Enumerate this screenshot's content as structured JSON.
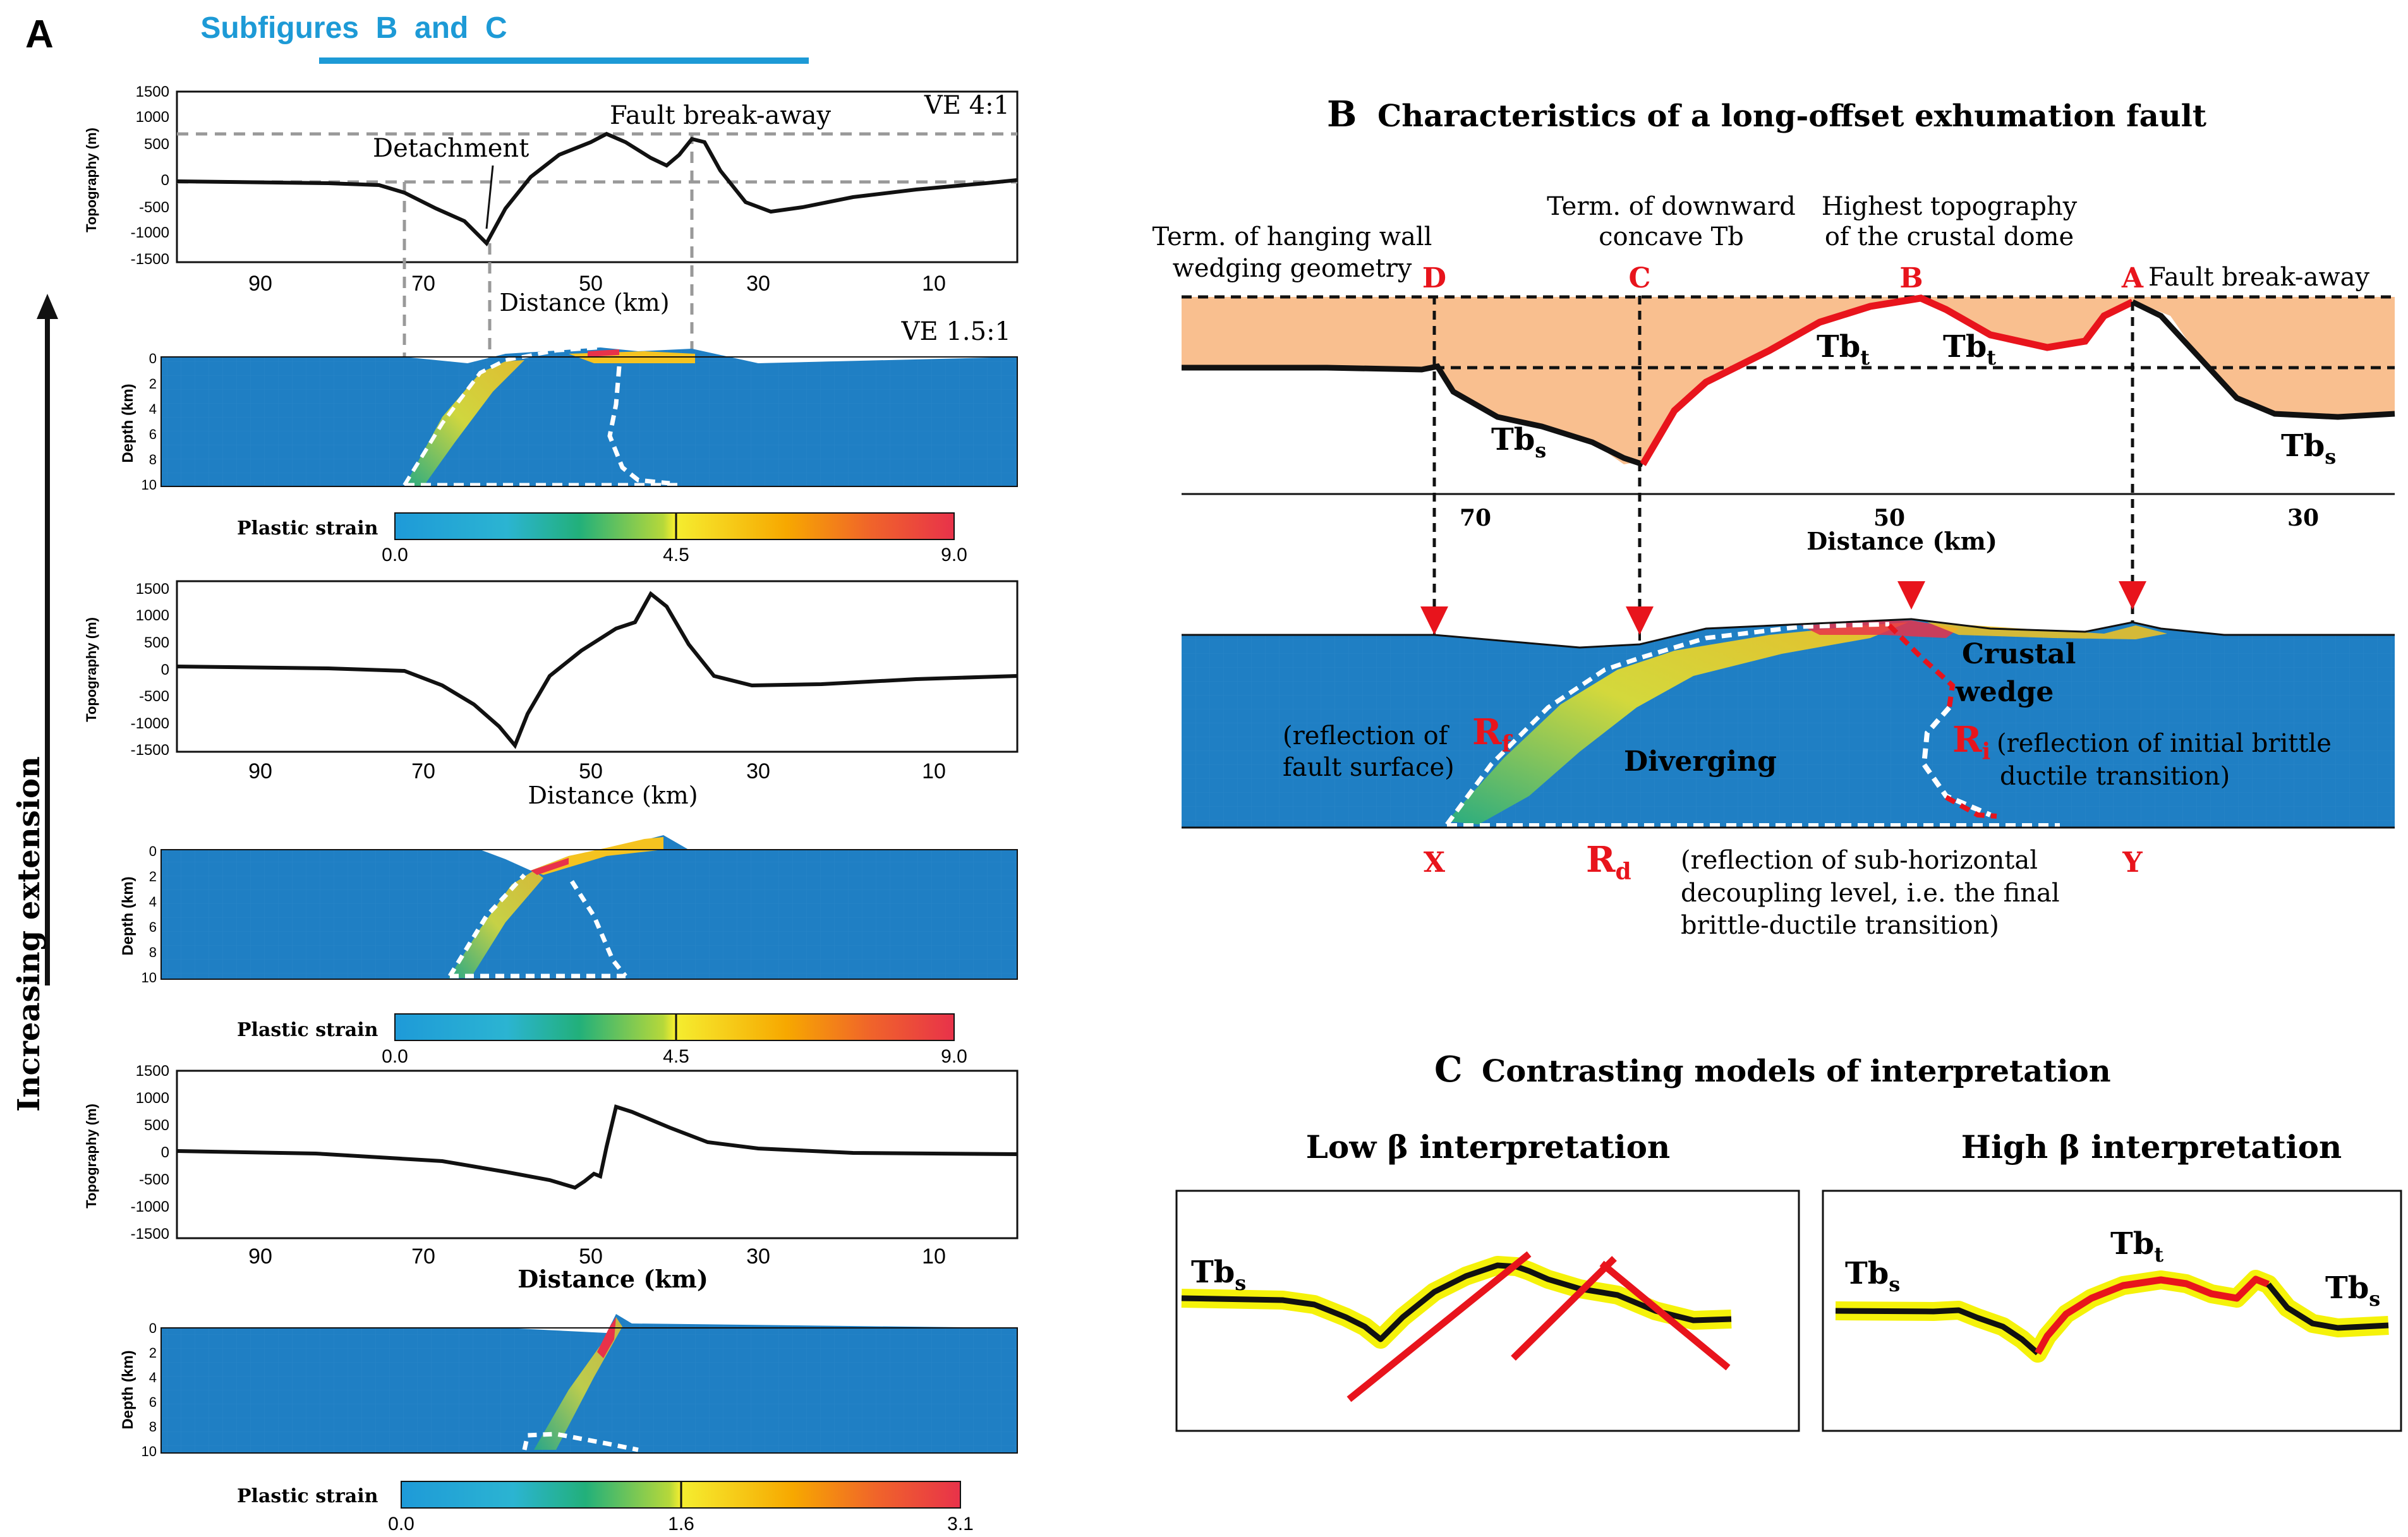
{
  "panel_a": {
    "letter": "A",
    "subfig_link": "Subfigures  B  and  C",
    "side_label": "Increasing extension",
    "topo_ylabel": "Topography (m)",
    "depth_ylabel": "Depth (km)",
    "ve_topo": "VE 4:1",
    "ve_depth": "VE 1.5:1",
    "detachment": "Detachment",
    "fault_breakaway": "Fault break-away",
    "distance_label": "Distance (km)",
    "topo_ticks": [
      "1500",
      "1000",
      "500",
      "0",
      "-500",
      "-1000",
      "-1500"
    ],
    "depth_ticks": [
      "0",
      "2",
      "4",
      "6",
      "8",
      "10"
    ],
    "dist_ticks": [
      "90",
      "70",
      "50",
      "30",
      "10"
    ],
    "strain_label": "Plastic strain",
    "strain_scale_1": [
      "0.0",
      "4.5",
      "9.0"
    ],
    "strain_scale_2": [
      "0.0",
      "4.5",
      "9.0"
    ],
    "strain_scale_3": [
      "0.0",
      "1.6",
      "3.1"
    ]
  },
  "panel_b": {
    "letter": "B",
    "title": "Characteristics of a long-offset exhumation fault",
    "label_hanging_1": "Term. of hanging wall",
    "label_hanging_2": "wedging geometry",
    "label_concave_1": "Term. of downward",
    "label_concave_2": "concave Tb",
    "label_highest_1": "Highest topography",
    "label_highest_2": "of the crustal dome",
    "pt_d": "D",
    "pt_c": "C",
    "pt_b": "B",
    "pt_a": "A",
    "fault_breakaway": "Fault break-away",
    "tbs": "Tb",
    "tbs_sub": "s",
    "tbt": "Tb",
    "tbt_sub": "t",
    "dist_ticks": [
      "70",
      "50",
      "30"
    ],
    "distance_label": "Distance (km)",
    "crustal_wedge_1": "Crustal",
    "crustal_wedge_2": "wedge",
    "diverging": "Diverging",
    "rf": "R",
    "rf_sub": "f",
    "rf_desc_1": "(reflection of",
    "rf_desc_2": "fault surface)",
    "ri": "R",
    "ri_sub": "i",
    "ri_desc_1": "(reflection of initial brittle",
    "ri_desc_2": "ductile transition)",
    "pt_x": "X",
    "pt_y": "Y",
    "rd": "R",
    "rd_sub": "d",
    "rd_desc_1": "(reflection of sub-horizontal",
    "rd_desc_2": "decoupling level, i.e. the final",
    "rd_desc_3": "brittle-ductile transition)"
  },
  "panel_c": {
    "letter": "C",
    "title": "Contrasting models of interpretation",
    "low_title": "Low β interpretation",
    "high_title": "High β interpretation",
    "tbs": "Tb",
    "tbs_sub": "s",
    "tbt": "Tb",
    "tbt_sub": "t"
  },
  "colors": {
    "sediment": "#f9bf8f",
    "model_blue": "#1f7fc4",
    "fault_red": "#e8141c",
    "link_blue": "#1d9ad6",
    "highlight": "#f5f20a"
  }
}
